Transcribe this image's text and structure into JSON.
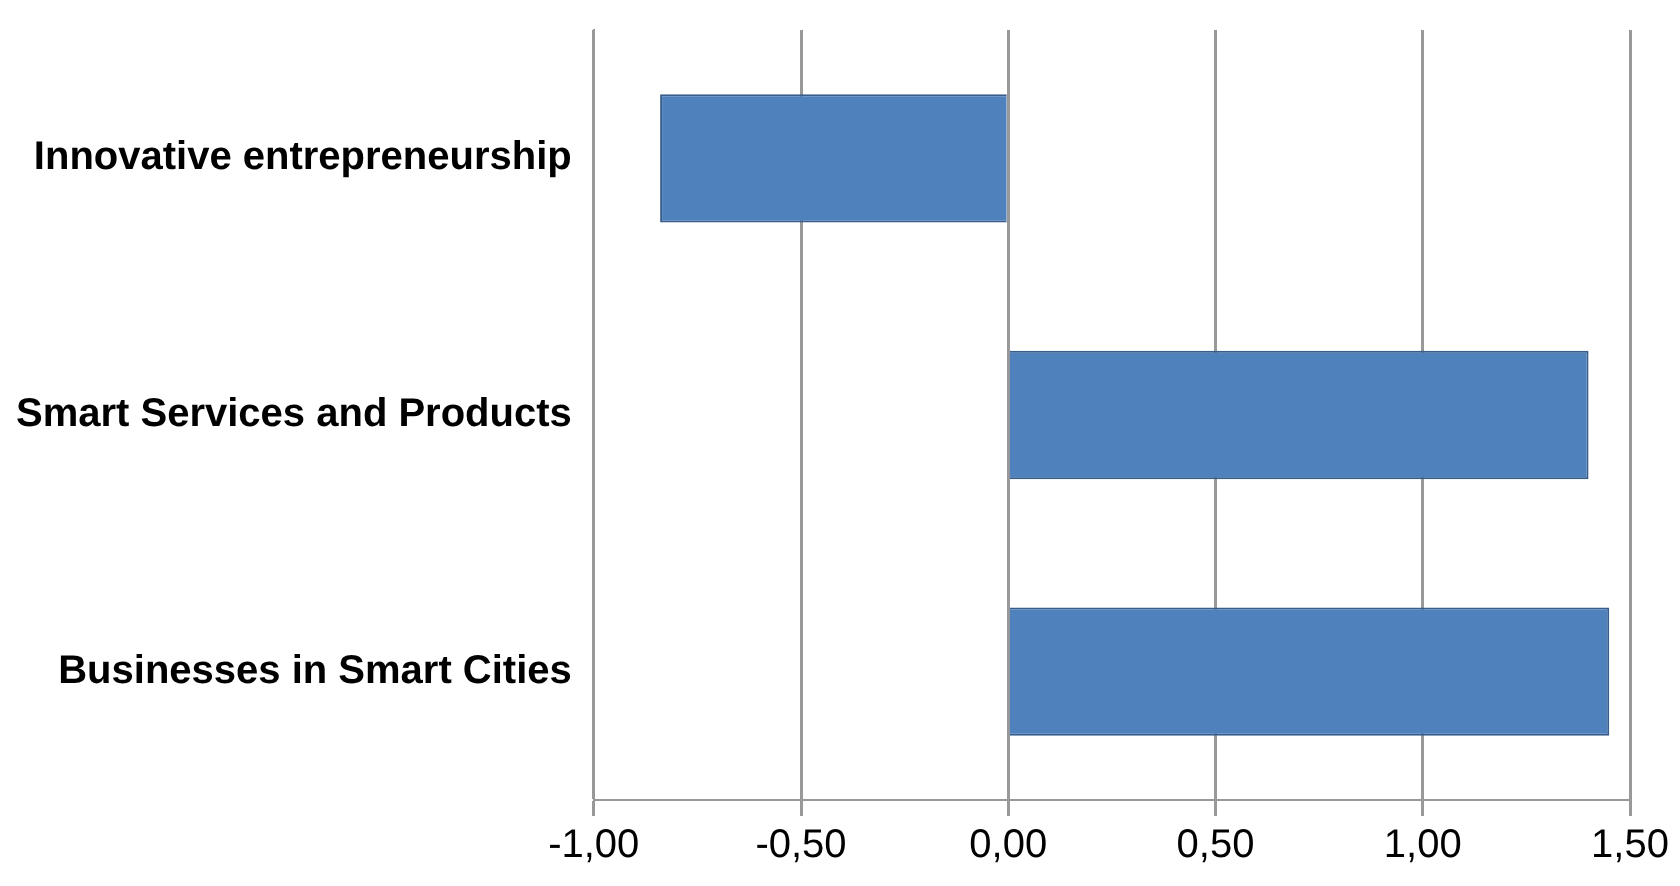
{
  "chart_data": {
    "type": "bar",
    "orientation": "horizontal",
    "categories": [
      "Innovative entrepreneurship",
      "Smart Services and Products",
      "Businesses in Smart Cities"
    ],
    "values": [
      -0.84,
      1.4,
      1.45
    ],
    "color": "#4f81bd",
    "xlim": [
      -1,
      1.5
    ],
    "xticks": [
      {
        "value": -1,
        "label": "-1,00"
      },
      {
        "value": -0.5,
        "label": "-0,50"
      },
      {
        "value": 0,
        "label": "0,00"
      },
      {
        "value": 0.5,
        "label": "0,50"
      },
      {
        "value": 1,
        "label": "1,00"
      },
      {
        "value": 1.5,
        "label": "1,50"
      }
    ],
    "grid": "x",
    "legend": false
  }
}
